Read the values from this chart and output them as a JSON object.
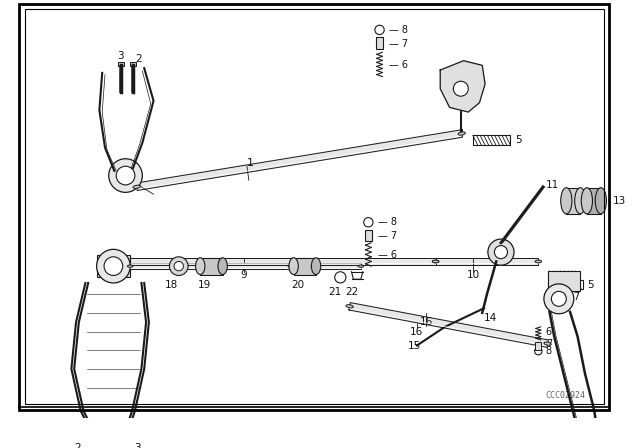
{
  "bg_color": "#ffffff",
  "line_color": "#1a1a1a",
  "text_color": "#111111",
  "watermark": "CCC02924",
  "fig_width": 6.4,
  "fig_height": 4.48,
  "dpi": 100
}
